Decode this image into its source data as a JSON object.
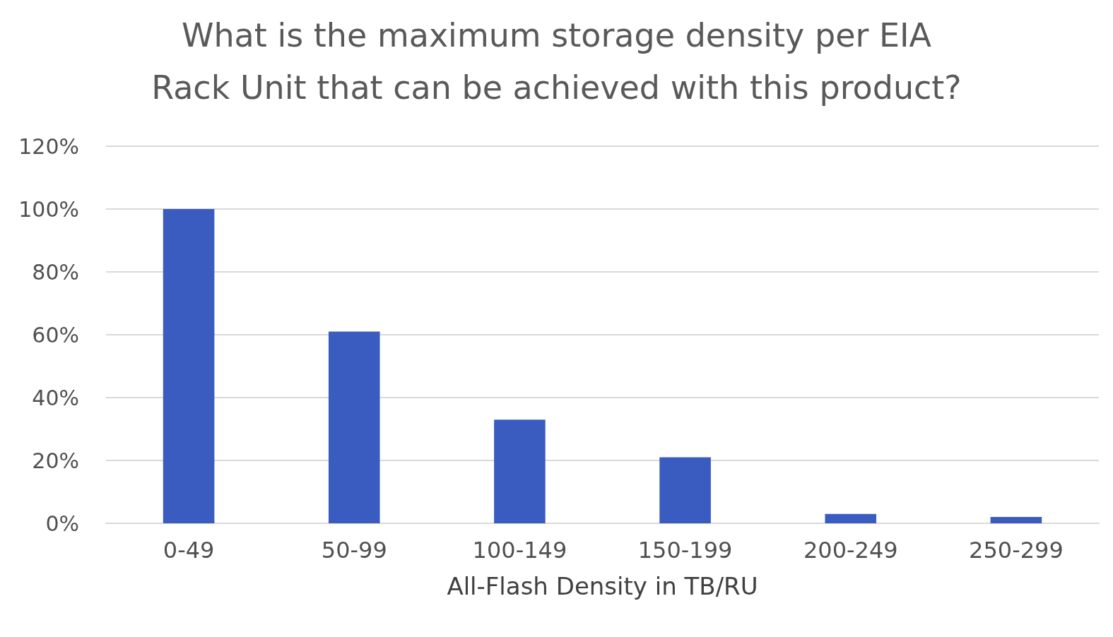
{
  "chart_data": {
    "type": "bar",
    "title": "What is the maximum storage density per EIA\nRack Unit that can be achieved with this product?",
    "xlabel": "All-Flash Density in TB/RU",
    "categories": [
      "0-49",
      "50-99",
      "100-149",
      "150-199",
      "200-249",
      "250-299"
    ],
    "values": [
      100,
      61,
      33,
      21,
      3,
      2
    ],
    "color": "#3a5cc0",
    "ylim": [
      0,
      120
    ],
    "yticks": [
      {
        "value": 0,
        "label": "0%"
      },
      {
        "value": 20,
        "label": "20%"
      },
      {
        "value": 40,
        "label": "40%"
      },
      {
        "value": 60,
        "label": "60%"
      },
      {
        "value": 80,
        "label": "80%"
      },
      {
        "value": 100,
        "label": "100%"
      },
      {
        "value": 120,
        "label": "120%"
      }
    ],
    "grid": "y"
  }
}
